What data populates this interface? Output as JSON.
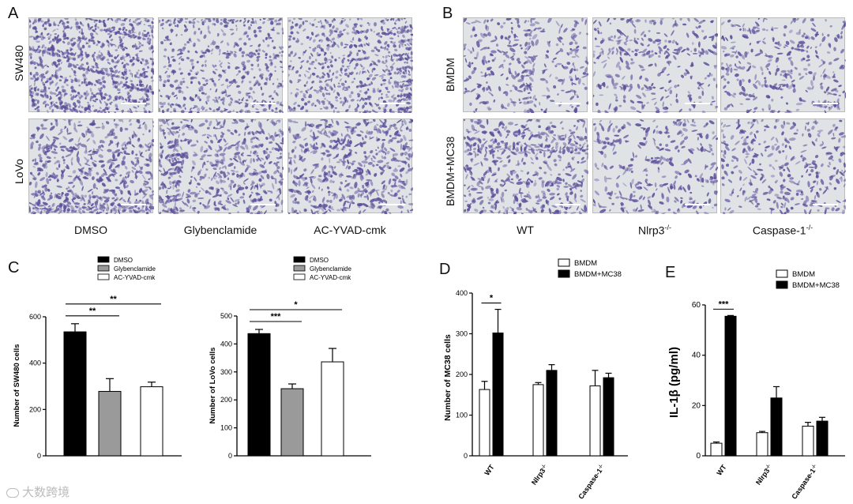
{
  "panels": {
    "A": "A",
    "B": "B",
    "C": "C",
    "D": "D",
    "E": "E"
  },
  "panelA": {
    "rows": [
      "SW480",
      "LoVo"
    ],
    "cols": [
      "DMSO",
      "Glybenclamide",
      "AC-YVAD-cmk"
    ]
  },
  "panelB": {
    "rows": [
      "BMDM",
      "BMDM+MC38"
    ],
    "cols": [
      "WT",
      "Nlrp3",
      "Caspase-1"
    ],
    "col_sup": "-/-"
  },
  "watermark": "大数跨境",
  "colors": {
    "micrograph_bg": "#dfe3e6",
    "cell": "#5b4c9a",
    "black_bar": "#000000",
    "grey_bar": "#9a9a9a",
    "white_bar": "#ffffff"
  },
  "chart_data": [
    {
      "id": "C1",
      "type": "bar",
      "ylabel": "Number of SW480 cells",
      "ylim": [
        0,
        600
      ],
      "yticks": [
        0,
        200,
        400,
        600
      ],
      "legend": [
        "DMSO",
        "Glybenclamide",
        "AC-YVAD-cmk"
      ],
      "categories": [
        "DMSO",
        "Glybenclamide",
        "AC-YVAD-cmk"
      ],
      "values": [
        535,
        278,
        298
      ],
      "errors": [
        35,
        55,
        20
      ],
      "significance": [
        {
          "from": 0,
          "to": 1,
          "label": "**"
        },
        {
          "from": 0,
          "to": 2,
          "label": "**"
        }
      ]
    },
    {
      "id": "C2",
      "type": "bar",
      "ylabel": "Number of LoVo cells",
      "ylim": [
        0,
        500
      ],
      "yticks": [
        0,
        100,
        200,
        300,
        400,
        500
      ],
      "legend": [
        "DMSO",
        "Glybenclamide",
        "AC-YVAD-cmk"
      ],
      "categories": [
        "DMSO",
        "Glybenclamide",
        "AC-YVAD-cmk"
      ],
      "values": [
        437,
        240,
        336
      ],
      "errors": [
        15,
        17,
        48
      ],
      "significance": [
        {
          "from": 0,
          "to": 1,
          "label": "***"
        },
        {
          "from": 0,
          "to": 2,
          "label": "*"
        }
      ]
    },
    {
      "id": "D",
      "type": "bar",
      "ylabel": "Number of MC38 cells",
      "ylim": [
        0,
        400
      ],
      "yticks": [
        0,
        100,
        200,
        300,
        400
      ],
      "categories": [
        "WT",
        "Nlrp3",
        "Caspase-1"
      ],
      "category_sup": "-/-",
      "series": [
        {
          "name": "BMDM",
          "values": [
            163,
            175,
            172
          ],
          "errors": [
            20,
            5,
            38
          ]
        },
        {
          "name": "BMDM+MC38",
          "values": [
            302,
            210,
            192
          ],
          "errors": [
            58,
            14,
            11
          ]
        }
      ],
      "significance": [
        {
          "group": 0,
          "label": "*"
        }
      ]
    },
    {
      "id": "E",
      "type": "bar",
      "ylabel": "IL-1β  (pg/ml)",
      "ylim": [
        0,
        60
      ],
      "yticks": [
        0,
        20,
        40,
        60
      ],
      "categories": [
        "WT",
        "Nlrp3",
        "Caspase-1"
      ],
      "category_sup": "-/-",
      "series": [
        {
          "name": "BMDM",
          "values": [
            5,
            9.2,
            11.8
          ],
          "errors": [
            0.5,
            0.5,
            1.5
          ]
        },
        {
          "name": "BMDM+MC38",
          "values": [
            55.5,
            23,
            13.8
          ],
          "errors": [
            0.3,
            4.5,
            1.5
          ]
        }
      ],
      "significance": [
        {
          "group": 0,
          "label": "***"
        }
      ]
    }
  ]
}
